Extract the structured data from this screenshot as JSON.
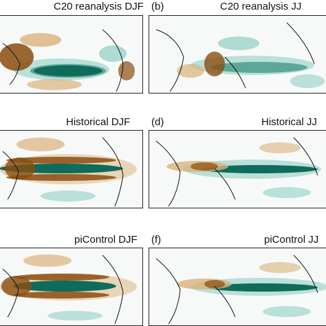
{
  "panels": [
    {
      "letter": "",
      "title": "C20 reanalysis DJF"
    },
    {
      "letter": "(b)",
      "title": "C20 reanalysis JJ"
    },
    {
      "letter": "",
      "title": "Historical DJF"
    },
    {
      "letter": "(d)",
      "title": "Historical JJ"
    },
    {
      "letter": "",
      "title": "piControl DJF"
    },
    {
      "letter": "(f)",
      "title": "piControl JJ"
    }
  ],
  "colors": {
    "positive": "#0f6b5a",
    "positive_light": "#8fcfc3",
    "negative": "#8a4d10",
    "negative_light": "#d9b27a",
    "background": "#f7f9f9",
    "coast": "#111111"
  }
}
